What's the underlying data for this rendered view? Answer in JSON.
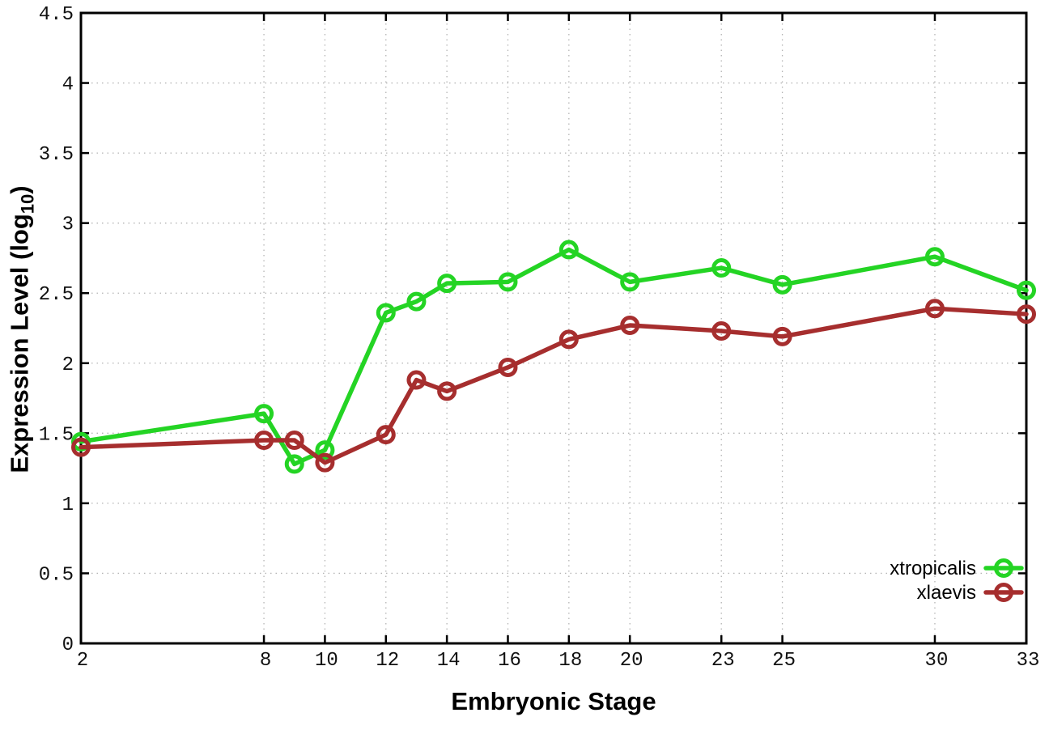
{
  "chart_data": {
    "type": "line",
    "title": "",
    "xlabel": "Embryonic Stage",
    "ylabel": "Expression Level (log10)",
    "ylabel_prefix": "Expression Level (log",
    "ylabel_sub": "10",
    "ylabel_suffix": ")",
    "x": [
      2,
      8,
      9,
      10,
      12,
      13,
      14,
      16,
      18,
      20,
      23,
      25,
      30,
      33
    ],
    "xticks": [
      2,
      8,
      10,
      12,
      14,
      16,
      18,
      20,
      23,
      25,
      30,
      33
    ],
    "yticks": [
      0,
      0.5,
      1,
      1.5,
      2,
      2.5,
      3,
      3.5,
      4,
      4.5
    ],
    "xlim": [
      2,
      33
    ],
    "ylim": [
      0,
      4.5
    ],
    "grid": true,
    "legend_position": "bottom-right",
    "series": [
      {
        "name": "xtropicalis",
        "color": "#24d424",
        "values": [
          1.44,
          1.64,
          1.28,
          1.38,
          2.36,
          2.44,
          2.57,
          2.58,
          2.81,
          2.58,
          2.68,
          2.56,
          2.76,
          2.52
        ]
      },
      {
        "name": "xlaevis",
        "color": "#a62e2e",
        "values": [
          1.4,
          1.45,
          1.45,
          1.29,
          1.49,
          1.88,
          1.8,
          1.97,
          2.17,
          2.27,
          2.23,
          2.19,
          2.39,
          2.35
        ]
      }
    ]
  },
  "style": {
    "background": "#ffffff",
    "grid_color": "#b4b4b4",
    "axis_color": "#000000",
    "tick_label_color": "#111111"
  }
}
